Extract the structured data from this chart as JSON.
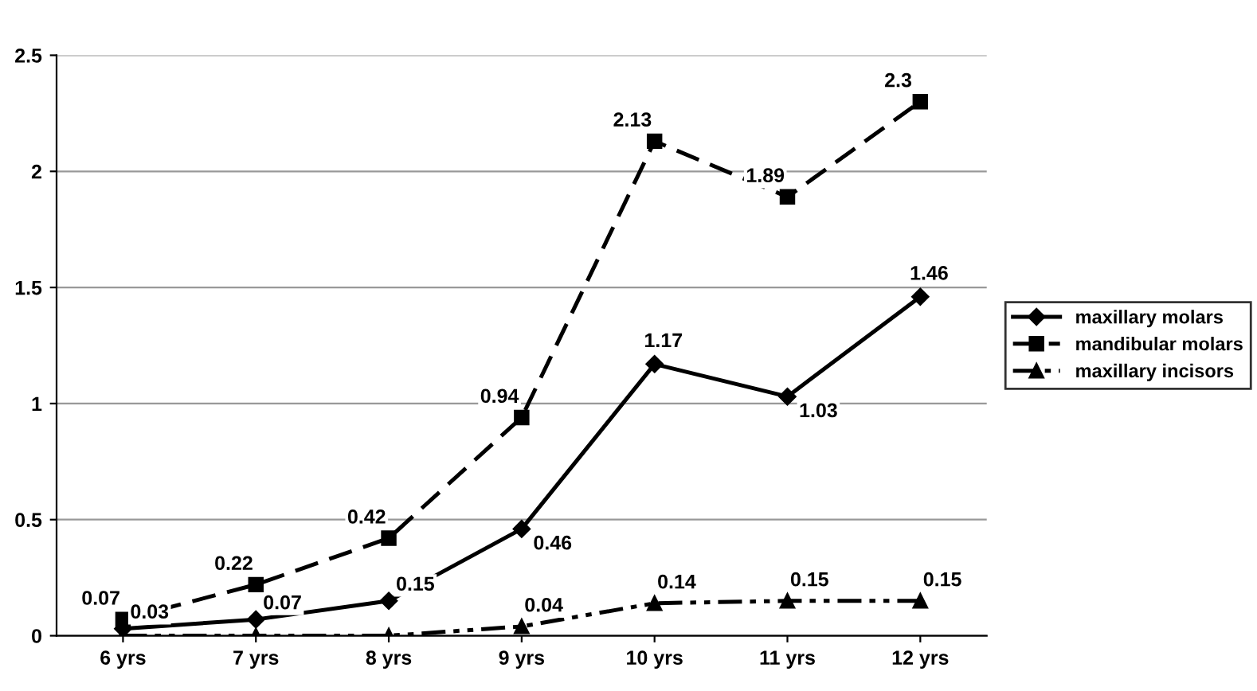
{
  "chart_data": {
    "type": "line",
    "categories": [
      "6 yrs",
      "7 yrs",
      "8 yrs",
      "9 yrs",
      "10 yrs",
      "11 yrs",
      "12 yrs"
    ],
    "series": [
      {
        "name": "maxillary molars",
        "color": "#000000",
        "marker": "diamond",
        "line_style": "solid",
        "values": [
          0.03,
          0.07,
          0.15,
          0.46,
          1.17,
          1.03,
          1.46
        ],
        "value_labels": [
          "0.03",
          "0.07",
          "0.15",
          "0.46",
          "1.17",
          "1.03",
          "1.46"
        ]
      },
      {
        "name": "mandibular molars",
        "color": "#000000",
        "marker": "square",
        "line_style": "dashed",
        "values": [
          0.07,
          0.22,
          0.42,
          0.94,
          2.13,
          1.89,
          2.3
        ],
        "value_labels": [
          "0.07",
          "0.22",
          "0.42",
          "0.94",
          "2.13",
          "1.89",
          "2.3"
        ]
      },
      {
        "name": "maxillary incisors",
        "color": "#000000",
        "marker": "triangle",
        "line_style": "dotted",
        "values": [
          0,
          0,
          0,
          0.04,
          0.14,
          0.15,
          0.15
        ],
        "value_labels": [
          null,
          null,
          null,
          "0.04",
          "0.14",
          "0.15",
          "0.15"
        ]
      }
    ],
    "ylim": [
      0,
      2.5
    ],
    "yticks": [
      0,
      0.5,
      1,
      1.5,
      2,
      2.5
    ],
    "grid": "y",
    "legend": "right"
  }
}
